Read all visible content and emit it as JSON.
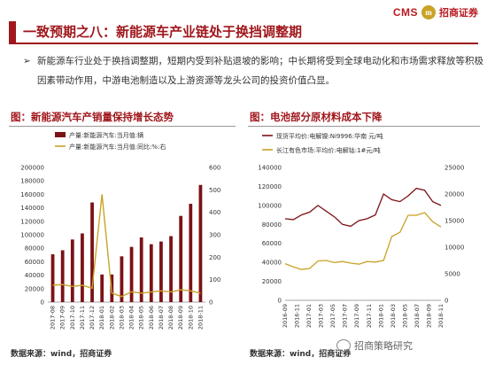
{
  "header": {
    "logo_text": "CMS",
    "logo_badge": "m",
    "logo_name": "招商证券",
    "title": "一致预期之八：新能源车产业链处于换挡调整期"
  },
  "bullet": {
    "arrow": "➢",
    "text": "新能源车行业处于换挡调整期，短期内受到补贴退坡的影响；中长期将受到全球电动化和市场需求释放等积极因素带动作用，中游电池制造以及上游资源等龙头公司的投资价值凸显。"
  },
  "left_chart": {
    "figure_title": "图：新能源汽车产销量保持增长态势",
    "source": "数据来源：wind，招商证券"
  },
  "right_chart": {
    "figure_title": "图：电池部分原材料成本下降",
    "source": "数据来源：wind，招商证券"
  },
  "watermark": {
    "text": "招商策略研究"
  },
  "colors": {
    "brand": "#a0171c",
    "bar": "#7b1216",
    "line_gold": "#c9a227",
    "line_dark": "#7b1216"
  },
  "chart_data": [
    {
      "type": "bar",
      "categories": [
        "2017-08",
        "2017-09",
        "2017-10",
        "2017-11",
        "2017-12",
        "2018-01",
        "2018-02",
        "2018-03",
        "2018-04",
        "2018-05",
        "2018-06",
        "2018-07",
        "2018-08",
        "2018-09",
        "2018-10",
        "2018-11"
      ],
      "series": [
        {
          "name": "产量:新能源汽车:当月值:辆",
          "kind": "bar",
          "axis": "left",
          "values": [
            71000,
            77000,
            93000,
            102000,
            148000,
            41000,
            41000,
            68000,
            82000,
            96000,
            86000,
            90000,
            98000,
            128000,
            146000,
            174000
          ]
        },
        {
          "name": "产量:新能源汽车:当月值:同比:%:右",
          "kind": "line",
          "axis": "right",
          "values": [
            75,
            78,
            70,
            75,
            62,
            480,
            40,
            25,
            46,
            40,
            45,
            50,
            45,
            55,
            50,
            40
          ]
        }
      ],
      "ylim_left": [
        0,
        200000
      ],
      "ylim_right": [
        0,
        600
      ],
      "yticks_left": [
        "0",
        "20000",
        "40000",
        "60000",
        "80000",
        "100000",
        "120000",
        "140000",
        "160000",
        "180000",
        "200000"
      ],
      "yticks_right": [
        "0",
        "100",
        "200",
        "300",
        "400",
        "500",
        "600"
      ]
    },
    {
      "type": "line",
      "x_ticks": [
        "2016-09",
        "2016-11",
        "2017-01",
        "2017-03",
        "2017-05",
        "2017-07",
        "2017-09",
        "2017-11",
        "2018-01",
        "2018-03",
        "2018-05",
        "2018-07",
        "2018-09",
        "2018-11"
      ],
      "series": [
        {
          "name": "现货平均价:电解镍:Ni9996:华南 元/吨",
          "axis": "left",
          "values": [
            86000,
            85000,
            90000,
            93000,
            100000,
            94000,
            88000,
            80000,
            78000,
            84000,
            86000,
            90000,
            112000,
            106000,
            104000,
            110000,
            118000,
            116000,
            104000,
            100000
          ]
        },
        {
          "name": "长江有色市场:平均价:电解钴:1#元/吨",
          "axis": "right",
          "values": [
            6900,
            6300,
            5800,
            6000,
            7400,
            7500,
            7100,
            7300,
            7000,
            6800,
            7300,
            7200,
            7500,
            12000,
            12800,
            16000,
            16000,
            16500,
            14800,
            13800
          ]
        }
      ],
      "ylim_left": [
        0,
        140000
      ],
      "ylim_right": [
        0,
        25000
      ],
      "yticks_left": [
        "0",
        "20000",
        "40000",
        "60000",
        "80000",
        "100000",
        "120000",
        "140000"
      ],
      "yticks_right": [
        "0",
        "5000",
        "10000",
        "15000",
        "20000",
        "25000"
      ]
    }
  ]
}
